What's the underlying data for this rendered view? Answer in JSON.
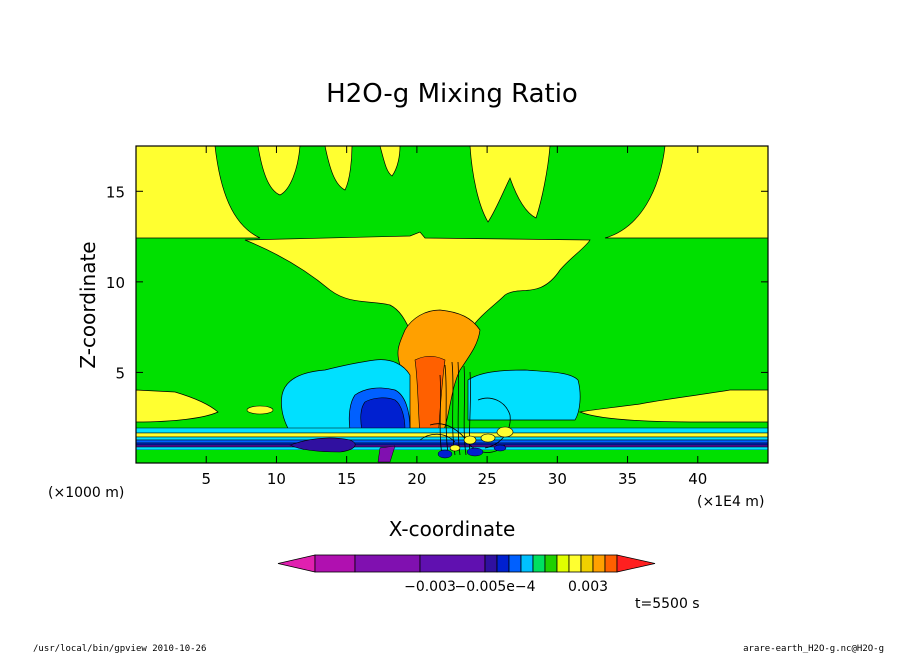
{
  "chart_data": {
    "type": "heatmap",
    "title": "H2O-g Mixing Ratio",
    "xlabel": "X-coordinate",
    "ylabel": "Z-coordinate",
    "x_unit_left": "(×1000 m)",
    "x_unit_right": "(×1E4 m)",
    "xlim": [
      0,
      45
    ],
    "ylim": [
      0,
      17.5
    ],
    "x_ticks": [
      5,
      10,
      15,
      20,
      25,
      30,
      35,
      40
    ],
    "y_ticks": [
      5,
      10,
      15
    ],
    "colorbar": {
      "colors": [
        "#e020b0",
        "#b010b0",
        "#8010b0",
        "#6010b0",
        "#3010a0",
        "#0020d0",
        "#0060ff",
        "#00c0ff",
        "#00e060",
        "#20d000",
        "#e0ff00",
        "#ffff30",
        "#f0d000",
        "#ffa000",
        "#ff6000",
        "#ff2020"
      ],
      "labels": [
        "−0.003",
        "−0.005e−4",
        "0.003"
      ]
    },
    "annotation": "t=5500 s",
    "footer_left": "/usr/local/bin/gpview  2010-10-26",
    "footer_right": "arare-earth_H2O-g.nc@H2O-g"
  }
}
